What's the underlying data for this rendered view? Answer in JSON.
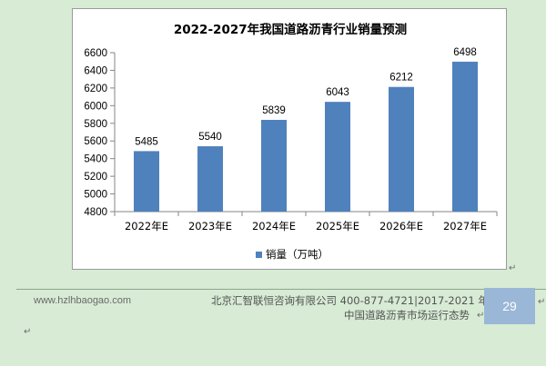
{
  "chart_data": {
    "type": "bar",
    "title": "2022-2027年我国道路沥青行业销量预测",
    "categories": [
      "2022年E",
      "2023年E",
      "2024年E",
      "2025年E",
      "2026年E",
      "2027年E"
    ],
    "series": [
      {
        "name": "销量（万吨）",
        "values": [
          5485,
          5540,
          5839,
          6043,
          6212,
          6498
        ]
      }
    ],
    "ylim": [
      4800,
      6600
    ],
    "yticks": [
      4800,
      5000,
      5200,
      5400,
      5600,
      5800,
      6000,
      6200,
      6400,
      6600
    ],
    "xlabel": "",
    "ylabel": "",
    "grid": false,
    "legend_position": "bottom",
    "bar_color": "#4f81bd",
    "data_labels": true
  },
  "footer": {
    "url": "www.hzlhbaogao.com",
    "company": "北京汇智联恒咨询有限公司  400-877-4721|2017-2021 年",
    "report": "中国道路沥青市场运行态势",
    "page_number": "29"
  },
  "marks": {
    "return": "↵"
  }
}
